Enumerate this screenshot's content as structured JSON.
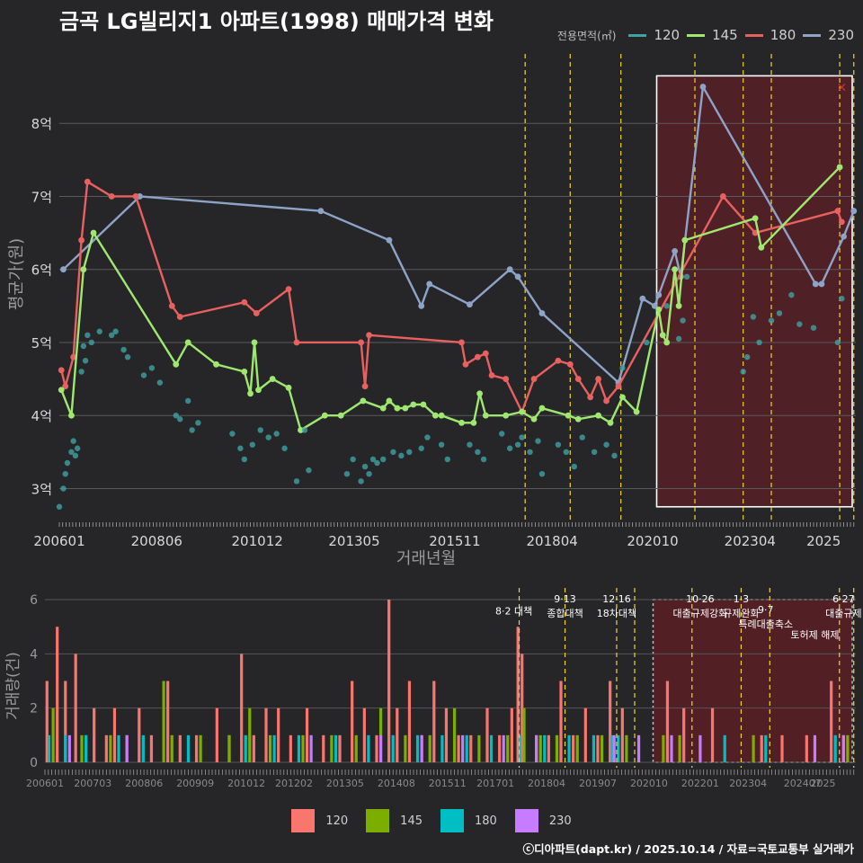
{
  "title": "금곡 LG빌리지1 아파트(1998) 매매가격 변화",
  "source": "ⓒ디아파트(dapt.kr) / 2025.10.14 / 자료=국토교통부 실거래가",
  "colors": {
    "s120": "#3fa3a3",
    "s145": "#9fe870",
    "s180": "#e96060",
    "s230": "#8ea3c8",
    "b120": "#f8766d",
    "b145": "#7cae00",
    "b180": "#00bfc4",
    "b230": "#c77cff",
    "policy": "#f2d52c",
    "highlight": "#5a1f24"
  },
  "legend_top": {
    "title": "전용면적(㎡)",
    "items": [
      {
        "label": "120",
        "color": "#3fa3a3"
      },
      {
        "label": "145",
        "color": "#9fe870"
      },
      {
        "label": "180",
        "color": "#e96060"
      },
      {
        "label": "230",
        "color": "#8ea3c8"
      }
    ]
  },
  "legend_bottom": {
    "items": [
      {
        "label": "120",
        "color": "#f8766d"
      },
      {
        "label": "145",
        "color": "#7cae00"
      },
      {
        "label": "180",
        "color": "#00bfc4"
      },
      {
        "label": "230",
        "color": "#c77cff"
      }
    ]
  },
  "chart_data": [
    {
      "type": "line",
      "title": "금곡 LG빌리지1 아파트(1998) 매매가격 변화",
      "xlabel": "거래년월",
      "ylabel": "평균가(원)",
      "xlim": [
        2006.0,
        2025.8
      ],
      "ylim": [
        2.55,
        8.95
      ],
      "y_ticks": [
        {
          "v": 3,
          "label": "3억"
        },
        {
          "v": 4,
          "label": "4억"
        },
        {
          "v": 5,
          "label": "5억"
        },
        {
          "v": 6,
          "label": "6억"
        },
        {
          "v": 7,
          "label": "7억"
        },
        {
          "v": 8,
          "label": "8억"
        }
      ],
      "x_ticks": [
        {
          "v": 2006.0,
          "label": "200601"
        },
        {
          "v": 2008.42,
          "label": "200806"
        },
        {
          "v": 2010.92,
          "label": "201012"
        },
        {
          "v": 2013.33,
          "label": "201305"
        },
        {
          "v": 2015.83,
          "label": "201511"
        },
        {
          "v": 2018.25,
          "label": "201804"
        },
        {
          "v": 2020.75,
          "label": "202010"
        },
        {
          "v": 2023.17,
          "label": "202304"
        },
        {
          "v": 2025.0,
          "label": "2025"
        }
      ],
      "policy_lines": [
        2017.58,
        2018.7,
        2019.96,
        2021.8,
        2023.0,
        2023.7,
        2025.4,
        2025.75
      ],
      "highlight": {
        "x0": 2020.85,
        "x1": 2025.8,
        "y0": 2.75,
        "y1": 8.65
      },
      "marker": {
        "label": "×",
        "x": 2025.45,
        "y": 8.5
      },
      "series": [
        {
          "name": "230",
          "x": [
            2006.1,
            2008.0,
            2012.5,
            2014.2,
            2015.0,
            2015.2,
            2016.2,
            2017.2,
            2017.4,
            2018.0,
            2019.9,
            2020.5,
            2020.8,
            2020.9,
            2021.3,
            2021.45,
            2022.0,
            2024.8,
            2024.95,
            2025.5,
            2025.75
          ],
          "y": [
            6.0,
            7.0,
            6.8,
            6.4,
            5.5,
            5.8,
            5.52,
            6.0,
            5.9,
            5.4,
            4.45,
            5.6,
            5.5,
            5.65,
            6.25,
            5.9,
            8.5,
            5.8,
            5.8,
            6.45,
            6.8
          ]
        },
        {
          "name": "180",
          "x": [
            2006.05,
            2006.15,
            2006.35,
            2006.55,
            2006.7,
            2007.3,
            2007.9,
            2008.8,
            2009.0,
            2010.6,
            2010.9,
            2011.7,
            2011.9,
            2013.5,
            2013.6,
            2013.7,
            2016.0,
            2016.1,
            2016.4,
            2016.6,
            2016.75,
            2017.1,
            2017.5,
            2017.8,
            2018.4,
            2018.7,
            2018.9,
            2019.2,
            2019.4,
            2019.6,
            2019.9,
            2022.5,
            2023.3,
            2025.35,
            2025.45
          ],
          "y": [
            4.62,
            4.4,
            4.8,
            6.4,
            7.2,
            7.0,
            7.0,
            5.5,
            5.35,
            5.55,
            5.4,
            5.73,
            5.0,
            5.0,
            4.4,
            5.1,
            5.0,
            4.7,
            4.8,
            4.85,
            4.55,
            4.5,
            4.05,
            4.5,
            4.75,
            4.7,
            4.5,
            4.25,
            4.5,
            4.2,
            4.4,
            7.0,
            6.5,
            6.8,
            6.65
          ]
        },
        {
          "name": "145",
          "x": [
            2006.05,
            2006.3,
            2006.6,
            2006.85,
            2008.9,
            2009.2,
            2009.9,
            2010.6,
            2010.75,
            2010.85,
            2010.95,
            2011.3,
            2011.7,
            2012.0,
            2012.6,
            2013.0,
            2013.55,
            2014.05,
            2014.2,
            2014.4,
            2014.6,
            2014.8,
            2015.05,
            2015.35,
            2015.5,
            2016.0,
            2016.3,
            2016.45,
            2016.6,
            2017.1,
            2017.5,
            2017.8,
            2018.0,
            2018.65,
            2018.9,
            2019.4,
            2019.7,
            2020.0,
            2020.35,
            2020.9,
            2021.0,
            2021.1,
            2021.3,
            2021.4,
            2021.55,
            2023.3,
            2023.45,
            2025.4
          ],
          "y": [
            4.35,
            4.0,
            6.0,
            6.5,
            4.7,
            5.0,
            4.7,
            4.6,
            4.3,
            5.0,
            4.35,
            4.5,
            4.38,
            3.8,
            4.0,
            4.0,
            4.2,
            4.1,
            4.2,
            4.1,
            4.1,
            4.15,
            4.15,
            4.0,
            4.0,
            3.9,
            3.9,
            4.3,
            4.0,
            4.0,
            4.05,
            3.95,
            4.1,
            4.0,
            3.95,
            4.0,
            3.9,
            4.25,
            4.05,
            5.45,
            5.1,
            5.0,
            6.0,
            5.5,
            6.4,
            6.7,
            6.3,
            7.4
          ]
        },
        {
          "name": "120",
          "scatter": true,
          "x": [
            2006.0,
            2006.1,
            2006.15,
            2006.2,
            2006.3,
            2006.35,
            2006.4,
            2006.45,
            2006.55,
            2006.6,
            2006.65,
            2006.7,
            2006.8,
            2007.0,
            2007.3,
            2007.4,
            2007.6,
            2007.7,
            2008.1,
            2008.3,
            2008.5,
            2008.9,
            2009.0,
            2009.2,
            2009.3,
            2009.45,
            2010.3,
            2010.5,
            2010.6,
            2010.8,
            2011.0,
            2011.2,
            2011.4,
            2011.6,
            2011.9,
            2012.1,
            2012.2,
            2013.15,
            2013.3,
            2013.5,
            2013.6,
            2013.7,
            2013.8,
            2013.9,
            2014.05,
            2014.3,
            2014.5,
            2014.7,
            2015.0,
            2015.15,
            2015.5,
            2015.65,
            2016.2,
            2016.4,
            2016.55,
            2017.0,
            2017.2,
            2017.4,
            2017.5,
            2017.7,
            2017.9,
            2018.0,
            2018.4,
            2018.6,
            2018.8,
            2019.0,
            2019.3,
            2019.6,
            2019.8,
            2020.0,
            2020.6,
            2021.1,
            2021.4,
            2021.5,
            2021.6,
            2023.0,
            2023.1,
            2023.25,
            2023.4,
            2023.7,
            2023.9,
            2024.2,
            2024.4,
            2024.75,
            2025.35,
            2025.45
          ],
          "y": [
            2.75,
            3.0,
            3.2,
            3.35,
            3.5,
            3.65,
            3.45,
            3.55,
            4.6,
            4.95,
            4.75,
            5.1,
            5.0,
            5.15,
            5.1,
            5.15,
            4.9,
            4.8,
            4.55,
            4.65,
            4.45,
            4.0,
            3.95,
            4.2,
            3.8,
            3.9,
            3.75,
            3.55,
            3.4,
            3.6,
            3.8,
            3.7,
            3.75,
            3.55,
            3.1,
            3.8,
            3.25,
            3.2,
            3.4,
            3.1,
            3.3,
            3.2,
            3.4,
            3.35,
            3.4,
            3.5,
            3.45,
            3.5,
            3.55,
            3.7,
            3.6,
            3.4,
            3.6,
            3.5,
            3.4,
            3.75,
            3.55,
            3.6,
            3.7,
            3.5,
            3.65,
            3.2,
            3.6,
            3.5,
            3.3,
            3.7,
            3.5,
            3.6,
            3.45,
            4.65,
            5.0,
            5.5,
            5.05,
            5.3,
            5.9,
            4.6,
            4.8,
            5.35,
            5.0,
            5.3,
            5.4,
            5.65,
            5.25,
            5.2,
            5.0,
            5.6
          ]
        }
      ]
    },
    {
      "type": "bar",
      "ylabel": "거래량(건)",
      "xlim": [
        2006.0,
        2025.8
      ],
      "ylim": [
        0,
        6.3
      ],
      "y_ticks": [
        0,
        2,
        4,
        6
      ],
      "x_ticks": [
        {
          "v": 2006.0,
          "label": "200601"
        },
        {
          "v": 2007.17,
          "label": "200703"
        },
        {
          "v": 2008.42,
          "label": "200806"
        },
        {
          "v": 2009.67,
          "label": "200909"
        },
        {
          "v": 2010.92,
          "label": "201012"
        },
        {
          "v": 2012.08,
          "label": "201202"
        },
        {
          "v": 2013.33,
          "label": "201305"
        },
        {
          "v": 2014.58,
          "label": "201408"
        },
        {
          "v": 2015.83,
          "label": "201511"
        },
        {
          "v": 2017.0,
          "label": "201701"
        },
        {
          "v": 2018.25,
          "label": "201804"
        },
        {
          "v": 2019.5,
          "label": "201907"
        },
        {
          "v": 2020.75,
          "label": "202010"
        },
        {
          "v": 2022.0,
          "label": "202201"
        },
        {
          "v": 2023.17,
          "label": "202304"
        },
        {
          "v": 2024.5,
          "label": "202407"
        },
        {
          "v": 2025.0,
          "label": "2025"
        }
      ],
      "policy_lines": [
        2017.58,
        2018.7,
        2019.96,
        2020.4,
        2021.8,
        2023.0,
        2023.7,
        2025.4,
        2025.75
      ],
      "highlight": {
        "x0": 2020.85,
        "x1": 2025.8
      },
      "annotations": [
        {
          "x": 2017.45,
          "y_pos": 5.45,
          "line1": "8·2 대책",
          "line2": ""
        },
        {
          "x": 2018.7,
          "y_pos": 5.9,
          "line1": "9·13",
          "line2": "종합대책"
        },
        {
          "x": 2019.96,
          "y_pos": 5.9,
          "line1": "12·16",
          "line2": "18차대책"
        },
        {
          "x": 2022.0,
          "y_pos": 5.9,
          "line1": "10·26",
          "line2": "대출규제강화"
        },
        {
          "x": 2023.0,
          "y_pos": 5.9,
          "line1": "1·3",
          "line2": "규제완화"
        },
        {
          "x": 2023.6,
          "y_pos": 5.5,
          "line1": "9·7",
          "line2": "특례대출축소"
        },
        {
          "x": 2024.8,
          "y_pos": 5.1,
          "line1": "",
          "line2": "토허제 해제"
        },
        {
          "x": 2025.5,
          "y_pos": 5.9,
          "line1": "6·27",
          "line2": "대출규제"
        }
      ],
      "series": [
        {
          "name": "120",
          "x": [
            2006.05,
            2006.3,
            2006.5,
            2006.75,
            2007.0,
            2007.2,
            2007.5,
            2007.7,
            2008.0,
            2008.3,
            2008.6,
            2009.0,
            2009.3,
            2009.7,
            2010.2,
            2010.5,
            2010.8,
            2011.1,
            2011.4,
            2011.7,
            2012.0,
            2012.4,
            2012.8,
            2013.2,
            2013.5,
            2013.8,
            2014.1,
            2014.4,
            2014.6,
            2014.9,
            2015.2,
            2015.5,
            2015.8,
            2016.1,
            2016.4,
            2016.8,
            2017.1,
            2017.4,
            2017.55,
            2017.65,
            2018.0,
            2018.3,
            2018.6,
            2018.9,
            2019.2,
            2019.5,
            2019.8,
            2020.1,
            2021.2,
            2021.6,
            2022.3,
            2023.5,
            2024.0,
            2024.6,
            2025.2,
            2025.5
          ],
          "y": [
            3,
            5,
            3,
            4,
            1,
            2,
            1,
            2,
            1,
            2,
            1,
            3,
            1,
            1,
            2,
            1,
            4,
            1,
            2,
            2,
            1,
            2,
            1,
            1,
            3,
            2,
            1,
            6,
            2,
            3,
            1,
            3,
            2,
            1,
            1,
            2,
            1,
            2,
            5,
            4,
            1,
            1,
            3,
            1,
            2,
            1,
            3,
            2,
            3,
            2,
            2,
            1,
            1,
            1,
            3,
            1
          ]
        },
        {
          "name": "145",
          "x": [
            2006.2,
            2006.9,
            2007.6,
            2008.9,
            2009.1,
            2009.8,
            2010.5,
            2011.0,
            2011.5,
            2012.3,
            2013.0,
            2013.6,
            2014.2,
            2014.8,
            2015.4,
            2016.0,
            2016.6,
            2017.3,
            2017.7,
            2018.1,
            2018.5,
            2019.0,
            2019.6,
            2020.2,
            2021.1,
            2021.5,
            2023.3,
            2025.6
          ],
          "y": [
            2,
            1,
            1,
            3,
            1,
            1,
            1,
            2,
            1,
            1,
            1,
            1,
            2,
            1,
            1,
            2,
            1,
            1,
            2,
            1,
            1,
            1,
            1,
            1,
            1,
            1,
            1,
            1
          ]
        },
        {
          "name": "180",
          "x": [
            2006.1,
            2006.5,
            2007.0,
            2007.8,
            2008.4,
            2009.5,
            2010.9,
            2011.6,
            2012.2,
            2013.1,
            2013.9,
            2014.5,
            2015.1,
            2015.7,
            2016.3,
            2016.9,
            2017.6,
            2018.2,
            2018.8,
            2019.4,
            2019.85,
            2020.0,
            2022.6,
            2023.6,
            2025.3
          ],
          "y": [
            1,
            1,
            1,
            1,
            1,
            1,
            1,
            1,
            1,
            1,
            1,
            1,
            1,
            1,
            1,
            1,
            1,
            1,
            1,
            1,
            1,
            1,
            1,
            1,
            1
          ]
        },
        {
          "name": "230",
          "x": [
            2006.6,
            2008.0,
            2012.5,
            2014.2,
            2015.2,
            2016.2,
            2017.2,
            2018.0,
            2019.9,
            2020.5,
            2021.3,
            2022.0,
            2024.8,
            2025.5
          ],
          "y": [
            1,
            1,
            1,
            1,
            1,
            1,
            1,
            1,
            1,
            1,
            1,
            1,
            1,
            1
          ]
        }
      ]
    }
  ]
}
